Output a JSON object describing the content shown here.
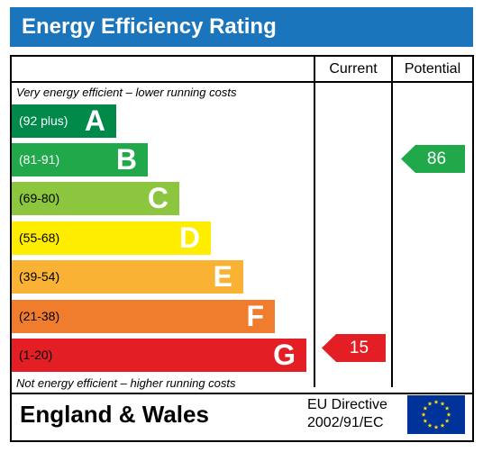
{
  "title": "Energy Efficiency Rating",
  "columns": {
    "current": "Current",
    "potential": "Potential"
  },
  "notes": {
    "top": "Very energy efficient – lower running costs",
    "bottom": "Not energy efficient – higher running costs"
  },
  "bands": [
    {
      "range": "(92 plus)",
      "letter": "A",
      "color": "#008a4a",
      "text_color": "#ffffff"
    },
    {
      "range": "(81-91)",
      "letter": "B",
      "color": "#20a84a",
      "text_color": "#ffffff"
    },
    {
      "range": "(69-80)",
      "letter": "C",
      "color": "#8cc63f",
      "text_color": "#000000"
    },
    {
      "range": "(55-68)",
      "letter": "D",
      "color": "#ffed00",
      "text_color": "#000000"
    },
    {
      "range": "(39-54)",
      "letter": "E",
      "color": "#f9b233",
      "text_color": "#000000"
    },
    {
      "range": "(21-38)",
      "letter": "F",
      "color": "#ef7d2d",
      "text_color": "#000000"
    },
    {
      "range": "(1-20)",
      "letter": "G",
      "color": "#e31e24",
      "text_color": "#000000"
    }
  ],
  "current": {
    "value": "15",
    "band": "G",
    "color": "#e31e24"
  },
  "potential": {
    "value": "86",
    "band": "B",
    "color": "#20a84a"
  },
  "footer": {
    "region": "England & Wales",
    "directive_line1": "EU Directive",
    "directive_line2": "2002/91/EC",
    "flag_icon": "eu-flag-icon",
    "flag_color": "#003399",
    "star_color": "#ffdd00"
  }
}
